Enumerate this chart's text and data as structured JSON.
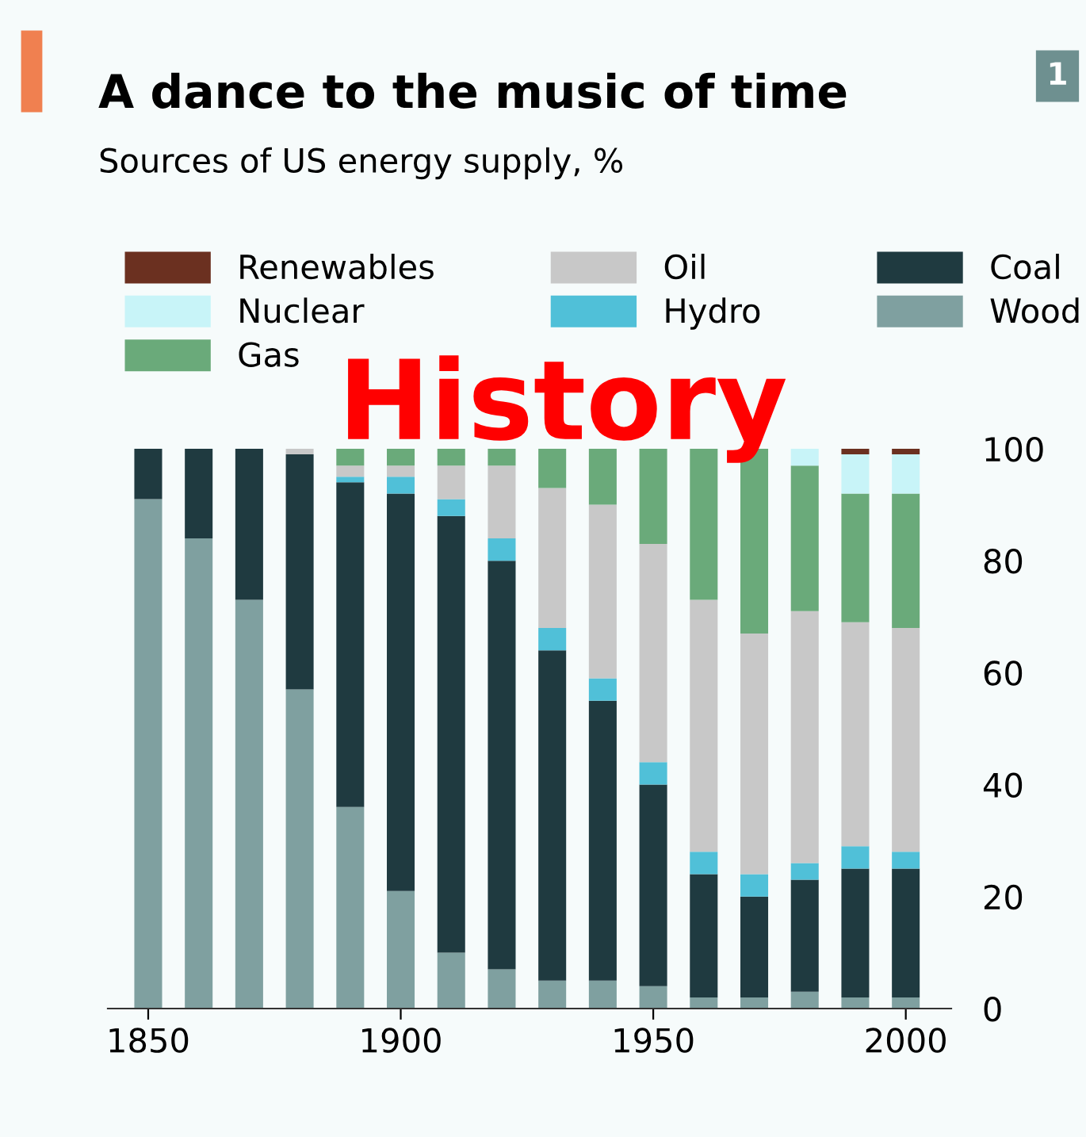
{
  "chart_data": {
    "type": "bar",
    "stacked": true,
    "title": "A dance to the music of time",
    "subtitle": "Sources of US energy supply, %",
    "annotations": [
      "1",
      "History"
    ],
    "x": [
      1850,
      1860,
      1870,
      1880,
      1890,
      1900,
      1910,
      1920,
      1930,
      1940,
      1950,
      1960,
      1970,
      1980,
      1990,
      2000
    ],
    "xlim": [
      1842,
      2009
    ],
    "xticks": [
      1850,
      1900,
      1950,
      2000
    ],
    "ylim": [
      0,
      100
    ],
    "yticks": [
      0,
      20,
      40,
      60,
      80,
      100
    ],
    "grid": false,
    "legend": "top",
    "series": [
      {
        "name": "Wood",
        "color": "#7fa0a0",
        "values": [
          91,
          84,
          73,
          57,
          36,
          21,
          10,
          7,
          5,
          5,
          4,
          2,
          2,
          3,
          2,
          2
        ]
      },
      {
        "name": "Coal",
        "color": "#1f3a40",
        "values": [
          9,
          16,
          27,
          42,
          58,
          71,
          78,
          73,
          59,
          50,
          36,
          22,
          18,
          20,
          23,
          23
        ]
      },
      {
        "name": "Hydro",
        "color": "#50c0d8",
        "values": [
          0,
          0,
          0,
          0,
          1,
          3,
          3,
          4,
          4,
          4,
          4,
          4,
          4,
          3,
          4,
          3
        ]
      },
      {
        "name": "Oil",
        "color": "#c8c8c8",
        "values": [
          0,
          0,
          0,
          1,
          2,
          2,
          6,
          13,
          25,
          31,
          39,
          45,
          43,
          45,
          40,
          40
        ]
      },
      {
        "name": "Gas",
        "color": "#6aaa7a",
        "values": [
          0,
          0,
          0,
          0,
          3,
          3,
          3,
          3,
          7,
          10,
          17,
          27,
          33,
          26,
          23,
          24
        ]
      },
      {
        "name": "Nuclear",
        "color": "#c8f4f8",
        "values": [
          0,
          0,
          0,
          0,
          0,
          0,
          0,
          0,
          0,
          0,
          0,
          0,
          0,
          3,
          7,
          7
        ]
      },
      {
        "name": "Renewables",
        "color": "#6b3020",
        "values": [
          0,
          0,
          0,
          0,
          0,
          0,
          0,
          0,
          0,
          0,
          0,
          0,
          0,
          0,
          1,
          1
        ]
      }
    ]
  }
}
